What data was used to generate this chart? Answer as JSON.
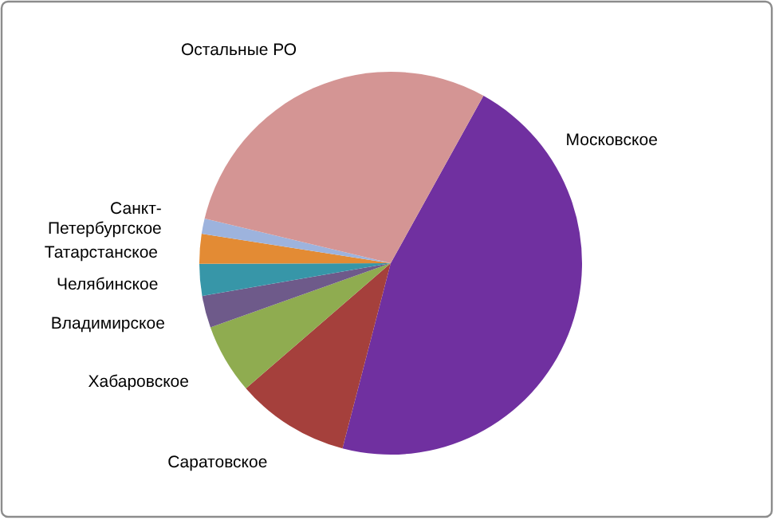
{
  "chart_data": {
    "type": "pie",
    "categories": [
      "Московское",
      "Саратовское",
      "Хабаровское",
      "Владимирское",
      "Челябинское",
      "Татарстанское",
      "Санкт-Петербургское",
      "Остальные РО"
    ],
    "values": [
      46,
      9.6,
      5.9,
      2.7,
      2.7,
      2.5,
      1.3,
      29.3
    ],
    "colors": [
      "#7030a0",
      "#a5403c",
      "#8fac50",
      "#6e5a8a",
      "#3796a8",
      "#e38b34",
      "#9db3dd",
      "#d49594"
    ],
    "legend": false
  }
}
